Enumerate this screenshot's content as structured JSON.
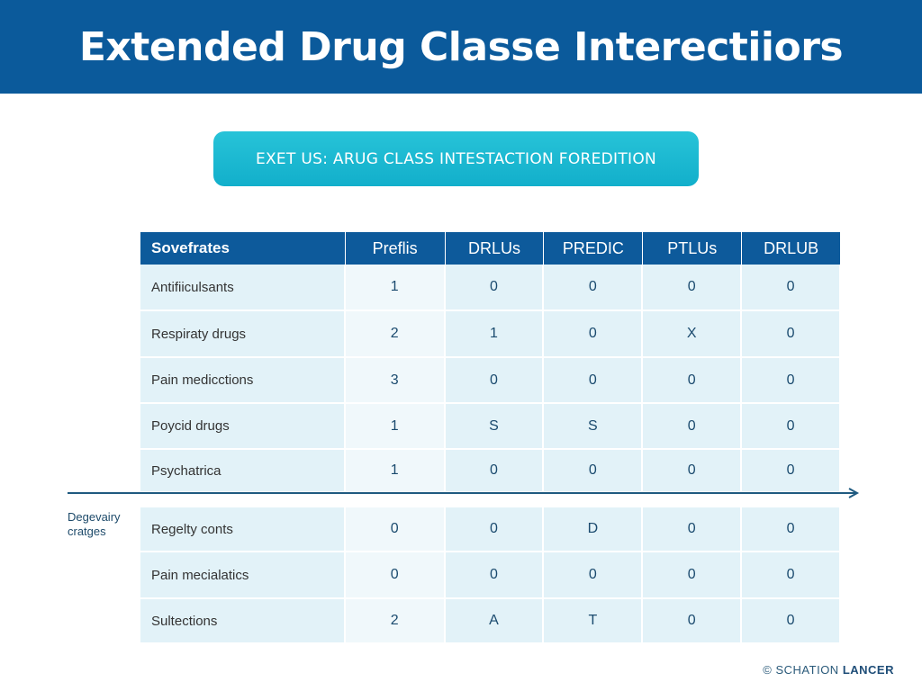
{
  "header": {
    "title": "Extended Drug Classe Interectiiors"
  },
  "banner_button": {
    "label": "EXET US: ARUG CLASS INTESTACTION FOREDITION"
  },
  "table": {
    "columns": [
      "Sovefrates",
      "Preflis",
      "DRLUs",
      "PREDIC",
      "PTLUs",
      "DRLUB"
    ],
    "rows": [
      [
        "Antifiiculsants",
        "1",
        "0",
        "0",
        "0",
        "0"
      ],
      [
        "Respiraty drugs",
        "2",
        "1",
        "0",
        "X",
        "0"
      ],
      [
        "Pain medicctions",
        "3",
        "0",
        "0",
        "0",
        "0"
      ],
      [
        "Poycid drugs",
        "1",
        "S",
        "S",
        "0",
        "0"
      ],
      [
        "Psychatrica",
        "1",
        "0",
        "0",
        "0",
        "0"
      ],
      [
        "Regelty conts",
        "0",
        "0",
        "D",
        "0",
        "0"
      ],
      [
        "Pain mecialatics",
        "0",
        "0",
        "0",
        "0",
        "0"
      ],
      [
        "Sultections",
        "2",
        "A",
        "T",
        "0",
        "0"
      ]
    ]
  },
  "side_label": {
    "line1": "Degevairy",
    "line2": "cratges"
  },
  "footer": {
    "copyright": "© SCHATION",
    "brand": "LANCER"
  },
  "colors": {
    "header": "#0b5a9b",
    "button": "#1ab8d0",
    "cell": "#e2f2f8"
  }
}
